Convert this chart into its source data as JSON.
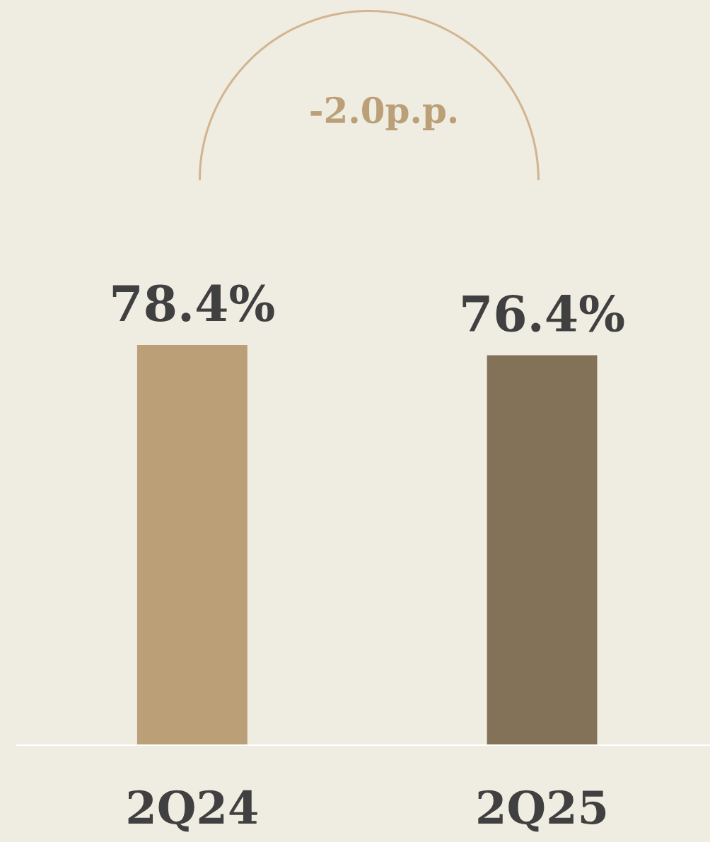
{
  "chart_data": {
    "type": "bar",
    "categories": [
      "2Q24",
      "2Q25"
    ],
    "values": [
      78.4,
      76.4
    ],
    "colors": [
      "#bb9f77",
      "#837258"
    ],
    "value_labels": [
      "78.4%",
      "76.4%"
    ],
    "annotations": [
      "-2.0p.p."
    ]
  }
}
